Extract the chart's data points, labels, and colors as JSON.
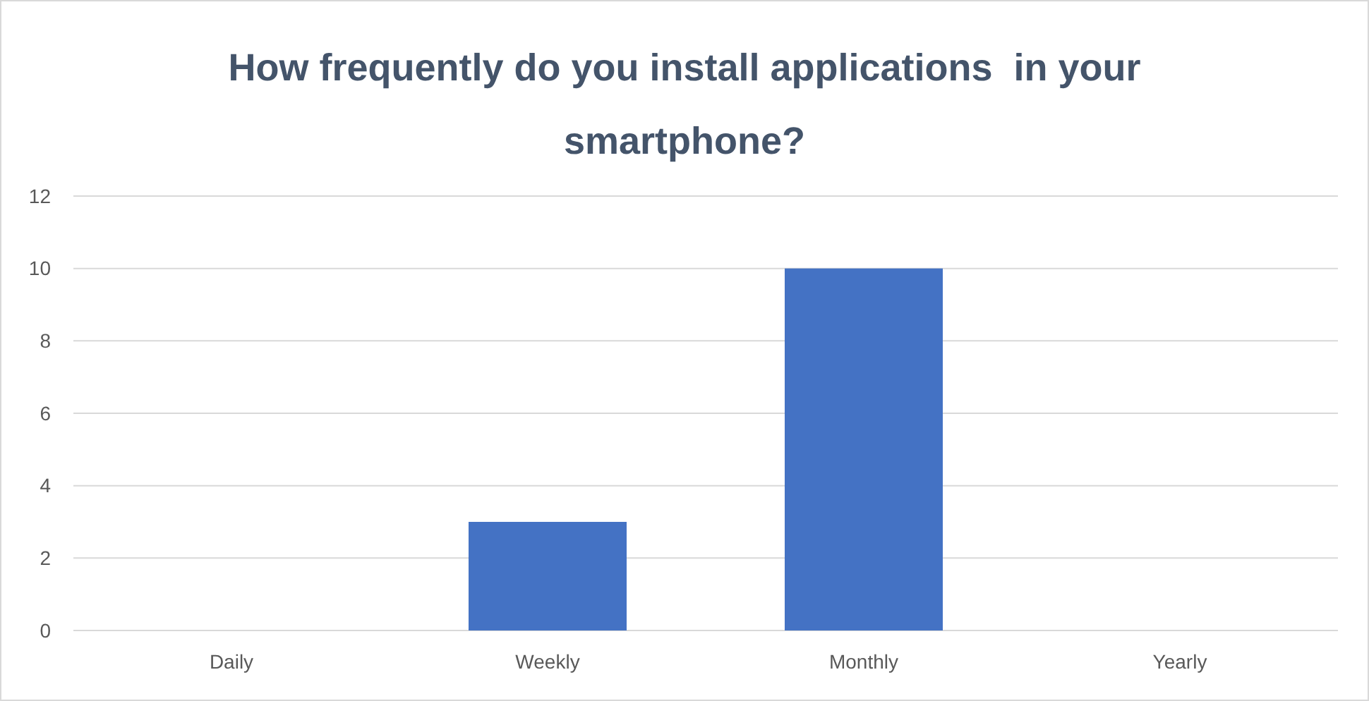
{
  "chart_data": {
    "type": "bar",
    "title": "How frequently do you install applications  in your smartphone?",
    "categories": [
      "Daily",
      "Weekly",
      "Monthly",
      "Yearly"
    ],
    "values": [
      0,
      3,
      10,
      0
    ],
    "color": "#4472c4",
    "ylim": [
      0,
      12
    ],
    "yticks": [
      0,
      2,
      4,
      6,
      8,
      10,
      12
    ],
    "grid": "y"
  }
}
